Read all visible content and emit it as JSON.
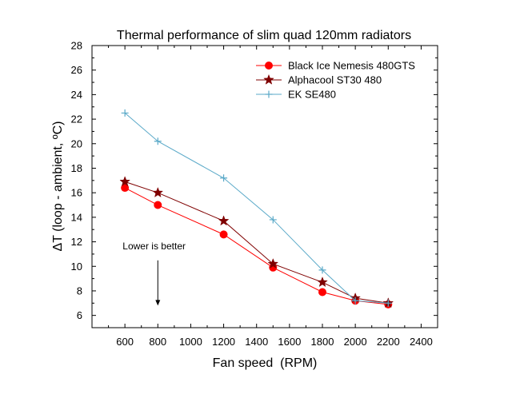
{
  "chart_data": {
    "type": "line",
    "title": "Thermal performance of slim quad 120mm radiators",
    "xlabel": "Fan speed  (RPM)",
    "ylabel": "ΔT (loop - ambient, ºC)",
    "xlim": [
      400,
      2500
    ],
    "ylim": [
      5,
      28
    ],
    "xticks": [
      600,
      800,
      1000,
      1200,
      1400,
      1600,
      1800,
      2000,
      2200,
      2400
    ],
    "yticks": [
      6,
      8,
      10,
      12,
      14,
      16,
      18,
      20,
      22,
      24,
      26,
      28
    ],
    "grid": false,
    "legend_position": "top-right",
    "series": [
      {
        "name": "Black Ice Nemesis 480GTS",
        "color": "#ff0000",
        "marker": "circle",
        "x": [
          600,
          800,
          1200,
          1500,
          1800,
          2000,
          2200
        ],
        "y": [
          16.4,
          15.0,
          12.6,
          9.9,
          7.9,
          7.2,
          6.9
        ]
      },
      {
        "name": "Alphacool ST30 480",
        "color": "#7f0000",
        "marker": "star",
        "x": [
          600,
          800,
          1200,
          1500,
          1800,
          2000,
          2200
        ],
        "y": [
          16.9,
          16.0,
          13.7,
          10.2,
          8.7,
          7.4,
          7.0
        ]
      },
      {
        "name": "EK SE480",
        "color": "#5aa9c8",
        "marker": "plus",
        "x": [
          600,
          800,
          1200,
          1500,
          1800,
          2000,
          2200
        ],
        "y": [
          22.5,
          20.2,
          17.2,
          13.8,
          9.7,
          7.2,
          7.0
        ]
      }
    ],
    "annotations": [
      {
        "text": "Lower is better",
        "x": 800,
        "y": 11.4,
        "arrow_to_y": 6.8
      }
    ]
  }
}
